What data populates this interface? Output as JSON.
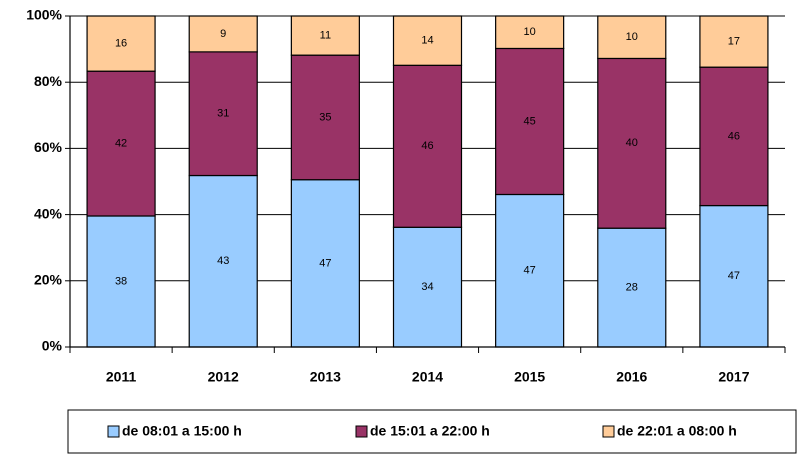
{
  "chart_data": {
    "type": "bar",
    "stacked": "percent",
    "categories": [
      "2011",
      "2012",
      "2013",
      "2014",
      "2015",
      "2016",
      "2017"
    ],
    "series": [
      {
        "name": "de 08:01 a 15:00 h",
        "color": "#99ccff",
        "values": [
          38,
          43,
          47,
          34,
          47,
          28,
          47
        ]
      },
      {
        "name": "de 15:01 a 22:00 h",
        "color": "#993366",
        "values": [
          42,
          31,
          35,
          46,
          45,
          40,
          46
        ]
      },
      {
        "name": "de 22:01 a 08:00 h",
        "color": "#ffcc99",
        "values": [
          16,
          9,
          11,
          14,
          10,
          10,
          17
        ]
      }
    ],
    "ylim": [
      0,
      100
    ],
    "yticks": [
      {
        "value": 0,
        "label": "0%"
      },
      {
        "value": 20,
        "label": "20%"
      },
      {
        "value": 40,
        "label": "40%"
      },
      {
        "value": 60,
        "label": "60%"
      },
      {
        "value": 80,
        "label": "80%"
      },
      {
        "value": 100,
        "label": "100%"
      }
    ],
    "grid": true,
    "legend": "bottom"
  }
}
